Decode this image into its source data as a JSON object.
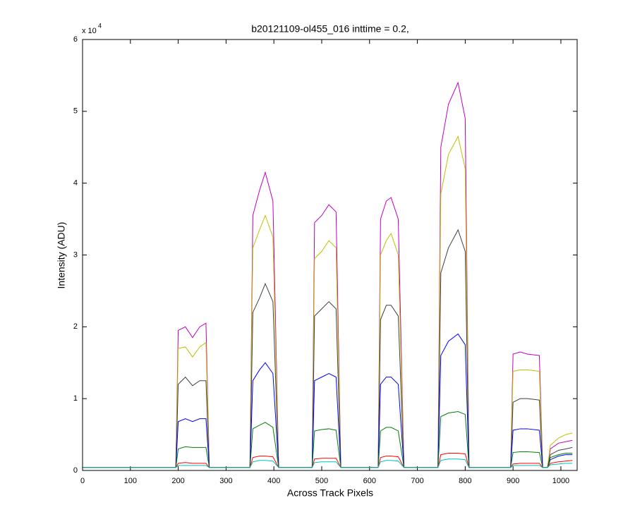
{
  "chart_data": {
    "type": "line",
    "title": "b20121109-ol455_016 inttime = 0.2,",
    "xlabel": "Across Track Pixels",
    "ylabel": "Intensity (ADU)",
    "y_multiplier": "x 10",
    "y_multiplier_exponent": "4",
    "x": [
      0,
      195,
      200,
      215,
      230,
      245,
      258,
      265,
      350,
      356,
      370,
      382,
      398,
      410,
      480,
      485,
      500,
      515,
      530,
      540,
      618,
      623,
      635,
      645,
      660,
      672,
      743,
      749,
      765,
      785,
      800,
      808,
      895,
      900,
      915,
      930,
      955,
      962,
      972,
      978,
      995,
      1010,
      1024
    ],
    "series": [
      {
        "color": "#bf00bf",
        "values": [
          0.04,
          0.04,
          1.95,
          2.0,
          1.85,
          2.0,
          2.05,
          0.04,
          0.04,
          3.55,
          3.9,
          4.15,
          3.75,
          0.04,
          0.04,
          3.45,
          3.55,
          3.7,
          3.6,
          0.04,
          0.04,
          3.5,
          3.75,
          3.8,
          3.5,
          0.04,
          0.04,
          4.5,
          5.1,
          5.4,
          4.9,
          0.04,
          0.04,
          1.62,
          1.65,
          1.62,
          1.6,
          0.04,
          0.04,
          0.3,
          0.38,
          0.4,
          0.42
        ]
      },
      {
        "color": "#bfbf00",
        "values": [
          0.04,
          0.04,
          1.7,
          1.72,
          1.58,
          1.72,
          1.78,
          0.04,
          0.04,
          3.1,
          3.35,
          3.55,
          3.25,
          0.04,
          0.04,
          2.95,
          3.05,
          3.2,
          3.1,
          0.04,
          0.04,
          3.0,
          3.2,
          3.3,
          3.0,
          0.04,
          0.04,
          3.85,
          4.4,
          4.65,
          4.2,
          0.04,
          0.04,
          1.38,
          1.4,
          1.4,
          1.38,
          0.04,
          0.04,
          0.35,
          0.45,
          0.5,
          0.52
        ]
      },
      {
        "color": "#404040",
        "values": [
          0.04,
          0.04,
          1.2,
          1.3,
          1.18,
          1.25,
          1.25,
          0.04,
          0.04,
          2.2,
          2.4,
          2.6,
          2.35,
          0.04,
          0.04,
          2.15,
          2.25,
          2.35,
          2.25,
          0.04,
          0.04,
          2.1,
          2.3,
          2.3,
          2.15,
          0.04,
          0.04,
          2.75,
          3.1,
          3.35,
          3.05,
          0.04,
          0.04,
          0.95,
          1.0,
          1.0,
          0.98,
          0.04,
          0.04,
          0.22,
          0.28,
          0.3,
          0.32
        ]
      },
      {
        "color": "#0000ff",
        "values": [
          0.04,
          0.04,
          0.68,
          0.72,
          0.68,
          0.72,
          0.72,
          0.04,
          0.04,
          1.25,
          1.4,
          1.5,
          1.35,
          0.04,
          0.04,
          1.25,
          1.3,
          1.35,
          1.3,
          0.04,
          0.04,
          1.2,
          1.3,
          1.3,
          1.2,
          0.04,
          0.04,
          1.6,
          1.8,
          1.9,
          1.75,
          0.04,
          0.04,
          0.56,
          0.58,
          0.58,
          0.56,
          0.04,
          0.04,
          0.15,
          0.2,
          0.22,
          0.22
        ]
      },
      {
        "color": "#008000",
        "values": [
          0.04,
          0.04,
          0.3,
          0.33,
          0.32,
          0.32,
          0.32,
          0.04,
          0.04,
          0.58,
          0.63,
          0.67,
          0.6,
          0.04,
          0.04,
          0.55,
          0.57,
          0.58,
          0.56,
          0.04,
          0.04,
          0.55,
          0.6,
          0.6,
          0.55,
          0.04,
          0.04,
          0.75,
          0.8,
          0.82,
          0.78,
          0.04,
          0.04,
          0.25,
          0.26,
          0.26,
          0.25,
          0.04,
          0.04,
          0.18,
          0.22,
          0.24,
          0.24
        ]
      },
      {
        "color": "#ff0000",
        "values": [
          0.04,
          0.04,
          0.1,
          0.11,
          0.1,
          0.1,
          0.1,
          0.04,
          0.04,
          0.18,
          0.2,
          0.2,
          0.19,
          0.04,
          0.04,
          0.16,
          0.17,
          0.17,
          0.17,
          0.04,
          0.04,
          0.18,
          0.2,
          0.2,
          0.19,
          0.04,
          0.04,
          0.22,
          0.24,
          0.24,
          0.23,
          0.04,
          0.04,
          0.09,
          0.1,
          0.1,
          0.1,
          0.04,
          0.04,
          0.1,
          0.12,
          0.13,
          0.14
        ]
      },
      {
        "color": "#00bfbf",
        "values": [
          0.04,
          0.04,
          0.07,
          0.07,
          0.07,
          0.07,
          0.07,
          0.04,
          0.04,
          0.12,
          0.14,
          0.14,
          0.13,
          0.04,
          0.04,
          0.11,
          0.12,
          0.12,
          0.12,
          0.04,
          0.04,
          0.12,
          0.14,
          0.14,
          0.13,
          0.04,
          0.04,
          0.14,
          0.16,
          0.16,
          0.15,
          0.04,
          0.04,
          0.07,
          0.07,
          0.07,
          0.07,
          0.04,
          0.04,
          0.08,
          0.09,
          0.1,
          0.1
        ]
      }
    ],
    "xlim": [
      0,
      1034
    ],
    "ylim": [
      0,
      6
    ],
    "xticks": [
      0,
      100,
      200,
      300,
      400,
      500,
      600,
      700,
      800,
      900,
      1000
    ],
    "yticks": [
      0,
      1,
      2,
      3,
      4,
      5,
      6
    ],
    "grid": false
  }
}
